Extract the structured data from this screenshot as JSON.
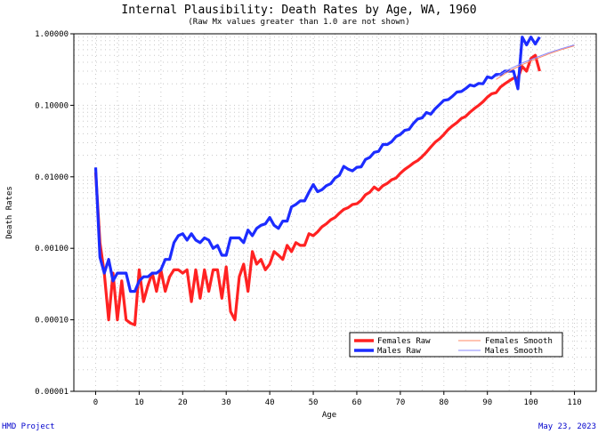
{
  "chart_data": {
    "type": "line",
    "title": "Internal Plausibility: Death Rates by Age, WA, 1960",
    "subtitle": "(Raw Mx values greater than 1.0 are not shown)",
    "xlabel": "Age",
    "ylabel": "Death Rates",
    "y_scale": "log",
    "xlim": [
      -5,
      115
    ],
    "ylim": [
      1e-05,
      1.0
    ],
    "x_ticks": [
      0,
      10,
      20,
      30,
      40,
      50,
      60,
      70,
      80,
      90,
      100,
      110
    ],
    "y_ticks": [
      1e-05,
      0.0001,
      0.001,
      0.01,
      0.1,
      1.0
    ],
    "y_tick_labels": [
      "0.00001",
      "0.00010",
      "0.00100",
      "0.01000",
      "0.10000",
      "1.00000"
    ],
    "grid": true,
    "legend_position": "bottom-right",
    "series": [
      {
        "name": "Females Raw",
        "color": "#ff2222",
        "x": [
          0,
          1,
          2,
          3,
          4,
          5,
          6,
          7,
          8,
          9,
          10,
          11,
          12,
          13,
          14,
          15,
          16,
          17,
          18,
          19,
          20,
          21,
          22,
          23,
          24,
          25,
          26,
          27,
          28,
          29,
          30,
          31,
          32,
          33,
          34,
          35,
          36,
          37,
          38,
          39,
          40,
          41,
          42,
          43,
          44,
          45,
          46,
          47,
          48,
          49,
          50,
          51,
          52,
          53,
          54,
          55,
          56,
          57,
          58,
          59,
          60,
          61,
          62,
          63,
          64,
          65,
          66,
          67,
          68,
          69,
          70,
          71,
          72,
          73,
          74,
          75,
          76,
          77,
          78,
          79,
          80,
          81,
          82,
          83,
          84,
          85,
          86,
          87,
          88,
          89,
          90,
          91,
          92,
          93,
          94,
          95,
          96,
          97,
          98,
          99,
          100,
          101,
          102
        ],
        "values": [
          0.0115,
          0.0012,
          0.00045,
          0.0001,
          0.00045,
          0.0001,
          0.00035,
          0.0001,
          9e-05,
          8.5e-05,
          0.0005,
          0.00018,
          0.0003,
          0.00045,
          0.00025,
          0.0005,
          0.00025,
          0.0004,
          0.0005,
          0.0005,
          0.00045,
          0.0005,
          0.00018,
          0.0005,
          0.0002,
          0.0005,
          0.00025,
          0.0005,
          0.0005,
          0.0002,
          0.00055,
          0.00013,
          0.0001,
          0.0004,
          0.0006,
          0.00025,
          0.0009,
          0.0006,
          0.0007,
          0.0005,
          0.0006,
          0.0009,
          0.0008,
          0.0007,
          0.0011,
          0.0009,
          0.0012,
          0.0011,
          0.0011,
          0.0016,
          0.0015,
          0.0017,
          0.002,
          0.0022,
          0.0025,
          0.0027,
          0.0031,
          0.0035,
          0.0037,
          0.0041,
          0.0042,
          0.0047,
          0.0056,
          0.0061,
          0.0072,
          0.0065,
          0.0075,
          0.0081,
          0.0091,
          0.0096,
          0.0112,
          0.0127,
          0.014,
          0.0156,
          0.0169,
          0.0191,
          0.0221,
          0.0261,
          0.0305,
          0.034,
          0.0391,
          0.0459,
          0.0518,
          0.0573,
          0.0654,
          0.07,
          0.08,
          0.09,
          0.0998,
          0.112,
          0.13,
          0.145,
          0.15,
          0.18,
          0.2,
          0.22,
          0.24,
          0.24,
          0.35,
          0.3,
          0.45,
          0.5,
          0.3
        ]
      },
      {
        "name": "Males Raw",
        "color": "#1c2cff",
        "x": [
          0,
          1,
          2,
          3,
          4,
          5,
          6,
          7,
          8,
          9,
          10,
          11,
          12,
          13,
          14,
          15,
          16,
          17,
          18,
          19,
          20,
          21,
          22,
          23,
          24,
          25,
          26,
          27,
          28,
          29,
          30,
          31,
          32,
          33,
          34,
          35,
          36,
          37,
          38,
          39,
          40,
          41,
          42,
          43,
          44,
          45,
          46,
          47,
          48,
          49,
          50,
          51,
          52,
          53,
          54,
          55,
          56,
          57,
          58,
          59,
          60,
          61,
          62,
          63,
          64,
          65,
          66,
          67,
          68,
          69,
          70,
          71,
          72,
          73,
          74,
          75,
          76,
          77,
          78,
          79,
          80,
          81,
          82,
          83,
          84,
          85,
          86,
          87,
          88,
          89,
          90,
          91,
          92,
          93,
          94,
          95,
          96,
          97,
          98,
          99,
          100,
          101,
          102
        ],
        "values": [
          0.0135,
          0.00075,
          0.00045,
          0.0007,
          0.00035,
          0.00045,
          0.00045,
          0.00045,
          0.00025,
          0.00025,
          0.00035,
          0.0004,
          0.0004,
          0.00045,
          0.00045,
          0.0005,
          0.0007,
          0.0007,
          0.0012,
          0.0015,
          0.0016,
          0.0013,
          0.0016,
          0.0013,
          0.0012,
          0.0014,
          0.0013,
          0.001,
          0.0011,
          0.0008,
          0.0008,
          0.0014,
          0.0014,
          0.0014,
          0.0012,
          0.0018,
          0.0015,
          0.0019,
          0.0021,
          0.0022,
          0.0027,
          0.0021,
          0.0019,
          0.0024,
          0.0024,
          0.0038,
          0.0041,
          0.0046,
          0.0046,
          0.0061,
          0.0078,
          0.0062,
          0.0066,
          0.0075,
          0.008,
          0.0096,
          0.0105,
          0.014,
          0.0128,
          0.0121,
          0.0136,
          0.0138,
          0.0175,
          0.0187,
          0.022,
          0.0227,
          0.0284,
          0.0283,
          0.0309,
          0.0365,
          0.0391,
          0.0446,
          0.046,
          0.0559,
          0.0643,
          0.0665,
          0.0793,
          0.0751,
          0.0894,
          0.1023,
          0.1173,
          0.1202,
          0.1343,
          0.1531,
          0.1557,
          0.1713,
          0.1922,
          0.1856,
          0.2025,
          0.2,
          0.25,
          0.24,
          0.27,
          0.27,
          0.3,
          0.3,
          0.3,
          0.17,
          0.9,
          0.7,
          0.9,
          0.72,
          0.9
        ]
      },
      {
        "name": "Females Smooth",
        "color": "#ff8866",
        "x": [
          92,
          95,
          98,
          101,
          104,
          107,
          110
        ],
        "values": [
          0.23,
          0.3,
          0.37,
          0.44,
          0.52,
          0.6,
          0.68
        ]
      },
      {
        "name": "Males Smooth",
        "color": "#8888ff",
        "x": [
          92,
          95,
          98,
          101,
          104,
          107,
          110
        ],
        "values": [
          0.25,
          0.32,
          0.39,
          0.46,
          0.54,
          0.62,
          0.7
        ]
      }
    ]
  },
  "footer": {
    "left": "HMD Project",
    "right": "May 23, 2023"
  }
}
